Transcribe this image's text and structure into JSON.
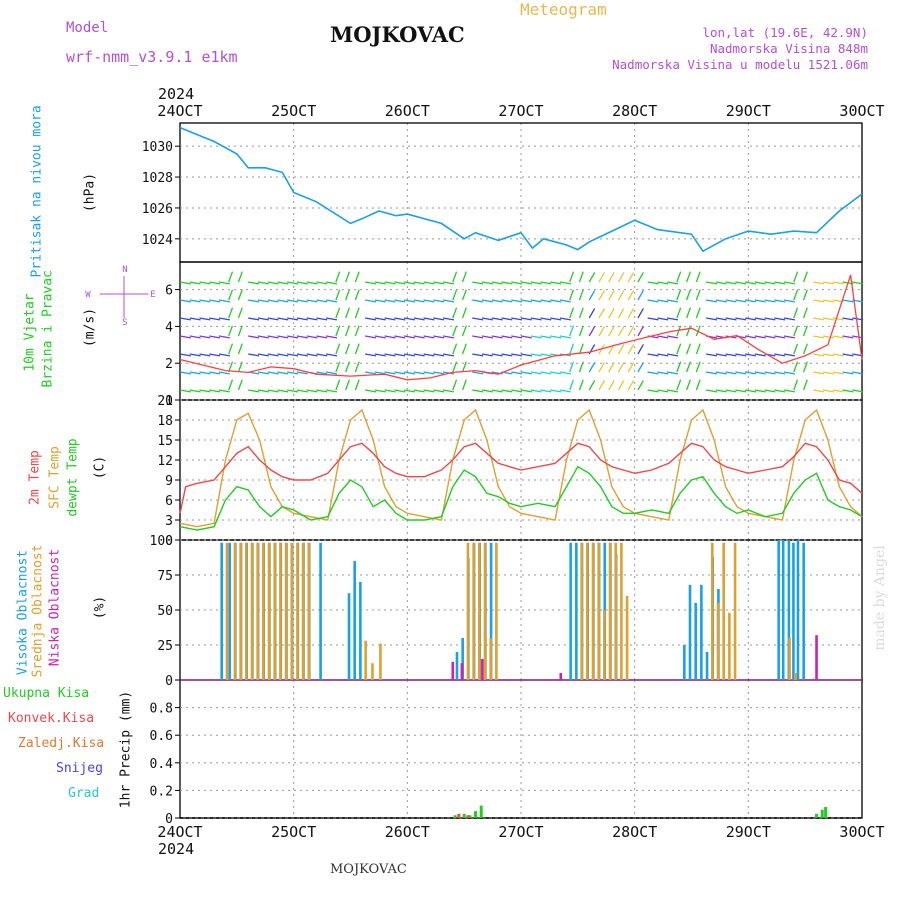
{
  "header": {
    "model_label": "Model",
    "model_name": "wrf-nmm_v3.9.1 e1km",
    "title": "MOJKOVAC",
    "subtitle": "Meteogram",
    "lonlat": "lon,lat (19.6E, 42.9N)",
    "altitude": "Nadmorska Visina 848m",
    "model_altitude": "Nadmorska Visina u modelu 1521.06m",
    "footer_title": "MOJKOVAC",
    "credit": "made by Angel"
  },
  "colors": {
    "pressure": "#1aa0e6",
    "wind_speed": "#ff4040",
    "temp2m": "#f04848",
    "sfc_temp": "#e0a030",
    "dewpt": "#22cc22",
    "high_cloud": "#1aa0e6",
    "mid_cloud": "#e0a030",
    "low_cloud": "#cc22aa",
    "label_magenta": "#b44fd8",
    "label_gold": "#e8b850"
  },
  "chart_data": [
    {
      "type": "line",
      "x_ticks": [
        "24OCT",
        "25OCT",
        "26OCT",
        "27OCT",
        "28OCT",
        "29OCT",
        "30OCT"
      ],
      "year_label": "2024",
      "ylabel": "Pritisak na nivou mora",
      "unit": "(hPa)",
      "ylim": [
        1022.5,
        1031.5
      ],
      "y_ticks": [
        "1024",
        "1026",
        "1028",
        "1030"
      ],
      "series": [
        {
          "name": "Pritisak na nivou mora",
          "x": [
            0,
            0.1,
            0.3,
            0.5,
            0.6,
            0.75,
            0.9,
            1.0,
            1.2,
            1.5,
            1.6,
            1.75,
            1.9,
            2.0,
            2.3,
            2.5,
            2.6,
            2.8,
            3.0,
            3.1,
            3.2,
            3.4,
            3.5,
            3.6,
            3.8,
            4.0,
            4.2,
            4.4,
            4.5,
            4.6,
            4.8,
            5.0,
            5.2,
            5.4,
            5.6,
            5.8,
            6.0
          ],
          "values": [
            1031.2,
            1030.9,
            1030.3,
            1029.5,
            1028.6,
            1028.6,
            1028.3,
            1027.0,
            1026.4,
            1025.0,
            1025.3,
            1025.8,
            1025.5,
            1025.6,
            1025.0,
            1024.0,
            1024.4,
            1023.9,
            1024.4,
            1023.4,
            1024.0,
            1023.6,
            1023.3,
            1023.8,
            1024.5,
            1025.2,
            1024.6,
            1024.4,
            1024.3,
            1023.2,
            1024.0,
            1024.5,
            1024.3,
            1024.5,
            1024.4,
            1025.8,
            1026.9
          ]
        }
      ]
    },
    {
      "type": "line",
      "ylabel": "10m Vjetar Brzina i Pravac",
      "unit": "(m/s)",
      "ylim": [
        0,
        7.5
      ],
      "y_ticks": [
        "0",
        "2",
        "4",
        "6"
      ],
      "compass": [
        "N",
        "W",
        "E",
        "S"
      ],
      "series": [
        {
          "name": "10m Vjetar",
          "x": [
            0,
            0.2,
            0.4,
            0.6,
            0.8,
            1.0,
            1.2,
            1.5,
            1.8,
            2.0,
            2.2,
            2.4,
            2.6,
            2.8,
            3.0,
            3.3,
            3.6,
            3.9,
            4.1,
            4.3,
            4.5,
            4.7,
            4.9,
            5.1,
            5.3,
            5.5,
            5.7,
            5.9,
            6.0
          ],
          "values": [
            2.2,
            1.9,
            1.6,
            1.5,
            1.8,
            1.7,
            1.4,
            1.3,
            1.4,
            1.1,
            1.2,
            1.5,
            1.6,
            1.4,
            1.9,
            2.4,
            2.6,
            3.1,
            3.4,
            3.7,
            3.9,
            3.3,
            3.5,
            2.7,
            2.0,
            2.4,
            3.0,
            6.8,
            2.2
          ]
        }
      ]
    },
    {
      "type": "line",
      "ylabel": "2m Temp / SFC Temp / dewpt Temp",
      "unit": "(C)",
      "ylim": [
        0,
        21
      ],
      "y_ticks": [
        "0",
        "3",
        "6",
        "9",
        "12",
        "15",
        "18",
        "21"
      ],
      "series": [
        {
          "name": "2m Temp",
          "x": [
            0,
            0.05,
            0.15,
            0.3,
            0.4,
            0.5,
            0.6,
            0.7,
            0.8,
            0.9,
            1.0,
            1.15,
            1.3,
            1.4,
            1.5,
            1.6,
            1.7,
            1.8,
            1.9,
            2.0,
            2.15,
            2.3,
            2.4,
            2.5,
            2.6,
            2.7,
            2.8,
            2.9,
            3.0,
            3.15,
            3.3,
            3.4,
            3.5,
            3.6,
            3.7,
            3.8,
            3.9,
            4.0,
            4.15,
            4.3,
            4.4,
            4.5,
            4.6,
            4.7,
            4.8,
            4.9,
            5.0,
            5.15,
            5.3,
            5.4,
            5.5,
            5.6,
            5.7,
            5.8,
            5.9,
            6.0
          ],
          "values": [
            4,
            8,
            8.5,
            9,
            11,
            13,
            14,
            12,
            10.5,
            9.5,
            9,
            9,
            10,
            12,
            14,
            14.5,
            13,
            11,
            10,
            9.5,
            9.5,
            10.5,
            12,
            14,
            14.5,
            13,
            11.5,
            11,
            10.5,
            11,
            11.5,
            13,
            14.5,
            14,
            12,
            11,
            10.5,
            10,
            10.5,
            11.5,
            13,
            14.5,
            14,
            12,
            11,
            10.5,
            10,
            10.5,
            11,
            12.5,
            14.5,
            14,
            12,
            9,
            8.5,
            7
          ]
        },
        {
          "name": "SFC Temp",
          "x": [
            0,
            0.15,
            0.3,
            0.4,
            0.5,
            0.6,
            0.7,
            0.8,
            0.9,
            1.0,
            1.15,
            1.3,
            1.4,
            1.5,
            1.6,
            1.7,
            1.8,
            1.9,
            2.0,
            2.15,
            2.3,
            2.4,
            2.5,
            2.6,
            2.7,
            2.8,
            2.9,
            3.0,
            3.15,
            3.3,
            3.4,
            3.5,
            3.6,
            3.7,
            3.8,
            3.9,
            4.0,
            4.15,
            4.3,
            4.4,
            4.5,
            4.6,
            4.7,
            4.8,
            4.9,
            5.0,
            5.15,
            5.3,
            5.4,
            5.5,
            5.6,
            5.7,
            5.8,
            5.9,
            6.0
          ],
          "values": [
            2.5,
            2,
            2.5,
            12,
            18,
            19,
            15,
            8,
            5,
            4,
            3.5,
            3,
            12,
            18,
            19.5,
            15,
            8,
            5,
            4,
            3.5,
            3,
            12,
            18,
            19.5,
            15,
            8,
            5,
            4,
            3.5,
            3,
            12,
            18,
            19.5,
            15,
            8,
            5,
            4,
            3.5,
            3,
            12,
            18,
            19.5,
            15,
            8,
            5,
            4,
            3.5,
            3,
            12,
            18,
            19.5,
            15,
            8,
            5,
            3.5
          ]
        },
        {
          "name": "dewpt Temp",
          "x": [
            0,
            0.15,
            0.3,
            0.4,
            0.5,
            0.6,
            0.7,
            0.8,
            0.9,
            1.0,
            1.15,
            1.3,
            1.4,
            1.5,
            1.6,
            1.7,
            1.8,
            1.9,
            2.0,
            2.15,
            2.3,
            2.4,
            2.5,
            2.6,
            2.7,
            2.8,
            2.9,
            3.0,
            3.15,
            3.3,
            3.4,
            3.5,
            3.6,
            3.7,
            3.8,
            3.9,
            4.0,
            4.15,
            4.3,
            4.4,
            4.5,
            4.6,
            4.7,
            4.8,
            4.9,
            5.0,
            5.15,
            5.3,
            5.4,
            5.5,
            5.6,
            5.7,
            5.8,
            5.9,
            6.0
          ],
          "values": [
            2,
            1.5,
            2,
            6,
            8,
            7.5,
            5,
            3.5,
            5,
            4.5,
            3,
            3.5,
            7,
            9,
            8,
            5,
            6,
            4,
            3,
            3,
            3.5,
            8,
            10.5,
            9.5,
            7,
            6.5,
            5.5,
            5,
            5.5,
            5,
            8,
            11,
            10,
            8,
            5,
            4,
            4,
            4.5,
            4,
            7,
            9,
            9.5,
            7,
            5,
            4,
            4.5,
            3.5,
            4,
            7,
            9,
            10,
            6,
            5,
            4.5,
            3.5
          ]
        }
      ]
    },
    {
      "type": "bar",
      "ylabel": "Visoka Oblacnost / Srednja Oblacnost / Niska Oblacnost",
      "unit": "(%)",
      "ylim": [
        0,
        100
      ],
      "y_ticks": [
        "0",
        "25",
        "50",
        "75",
        "100"
      ],
      "series": [
        {
          "name": "Visoka Oblacnost",
          "x": [
            0.38,
            0.45,
            0.5,
            0.55,
            0.6,
            0.65,
            0.7,
            0.75,
            0.8,
            0.85,
            0.9,
            0.95,
            1.0,
            1.05,
            1.1,
            1.15,
            1.25,
            1.5,
            1.55,
            1.6,
            2.45,
            2.5,
            2.55,
            2.6,
            2.65,
            2.7,
            2.75,
            3.45,
            3.5,
            3.55,
            3.6,
            3.65,
            3.7,
            3.75,
            3.8,
            3.85,
            4.45,
            4.5,
            4.55,
            4.6,
            4.65,
            4.7,
            4.75,
            5.28,
            5.32,
            5.37,
            5.41,
            5.45,
            5.5
          ],
          "values": [
            98,
            98,
            98,
            98,
            98,
            98,
            98,
            98,
            98,
            98,
            98,
            98,
            98,
            98,
            98,
            98,
            98,
            62,
            85,
            70,
            20,
            30,
            87,
            98,
            98,
            98,
            98,
            98,
            98,
            98,
            98,
            98,
            98,
            98,
            98,
            90,
            25,
            68,
            55,
            68,
            20,
            88,
            65,
            100,
            100,
            100,
            98,
            100,
            98
          ]
        },
        {
          "name": "Srednja Oblacnost",
          "x": [
            0.4,
            0.47,
            0.52,
            0.57,
            0.62,
            0.67,
            0.72,
            0.77,
            0.82,
            0.87,
            0.92,
            0.97,
            1.02,
            1.07,
            1.12,
            1.62,
            1.68,
            1.75,
            2.52,
            2.57,
            2.62,
            2.67,
            2.72,
            2.77,
            3.52,
            3.57,
            3.62,
            3.67,
            3.72,
            3.77,
            3.82,
            3.87,
            3.92,
            4.67,
            4.72,
            4.77,
            4.82,
            4.87,
            5.35,
            5.4
          ],
          "values": [
            98,
            98,
            98,
            98,
            98,
            98,
            98,
            98,
            98,
            98,
            98,
            98,
            98,
            98,
            98,
            28,
            12,
            26,
            98,
            98,
            98,
            98,
            30,
            98,
            98,
            98,
            98,
            98,
            50,
            98,
            98,
            98,
            60,
            98,
            55,
            98,
            48,
            98,
            30,
            5
          ]
        },
        {
          "name": "Niska Oblacnost",
          "x": [
            2.4,
            2.48,
            2.66,
            3.35,
            5.6
          ],
          "values": [
            13,
            12,
            15,
            5,
            32
          ]
        }
      ]
    },
    {
      "type": "bar",
      "ylabel": "1hr Precip",
      "unit": "(mm)",
      "ylim": [
        0,
        1.0
      ],
      "y_ticks": [
        "0",
        "0.2",
        "0.4",
        "0.6",
        "0.8"
      ],
      "x_ticks": [
        "24OCT",
        "25OCT",
        "26OCT",
        "27OCT",
        "28OCT",
        "29OCT",
        "30OCT"
      ],
      "year_label": "2024",
      "series": [
        {
          "name": "Ukupna Kisa",
          "x": [
            2.42,
            2.5,
            2.55,
            2.6,
            2.65,
            5.6,
            5.65,
            5.68
          ],
          "values": [
            0.02,
            0.03,
            0.02,
            0.05,
            0.09,
            0.03,
            0.06,
            0.08
          ]
        },
        {
          "name": "Konvek.Kisa",
          "x": [
            2.44,
            2.52
          ],
          "values": [
            0.03,
            0.02
          ]
        },
        {
          "name": "Zaledj.Kisa",
          "x": [],
          "values": []
        },
        {
          "name": "Snijeg",
          "x": [],
          "values": []
        },
        {
          "name": "Grad",
          "x": [],
          "values": []
        }
      ]
    }
  ],
  "legend5": {
    "ukupna": "Ukupna Kisa",
    "konvek": "Konvek.Kisa",
    "zaledj": "Zaledj.Kisa",
    "snijeg": "Snijeg",
    "grad": "Grad"
  }
}
